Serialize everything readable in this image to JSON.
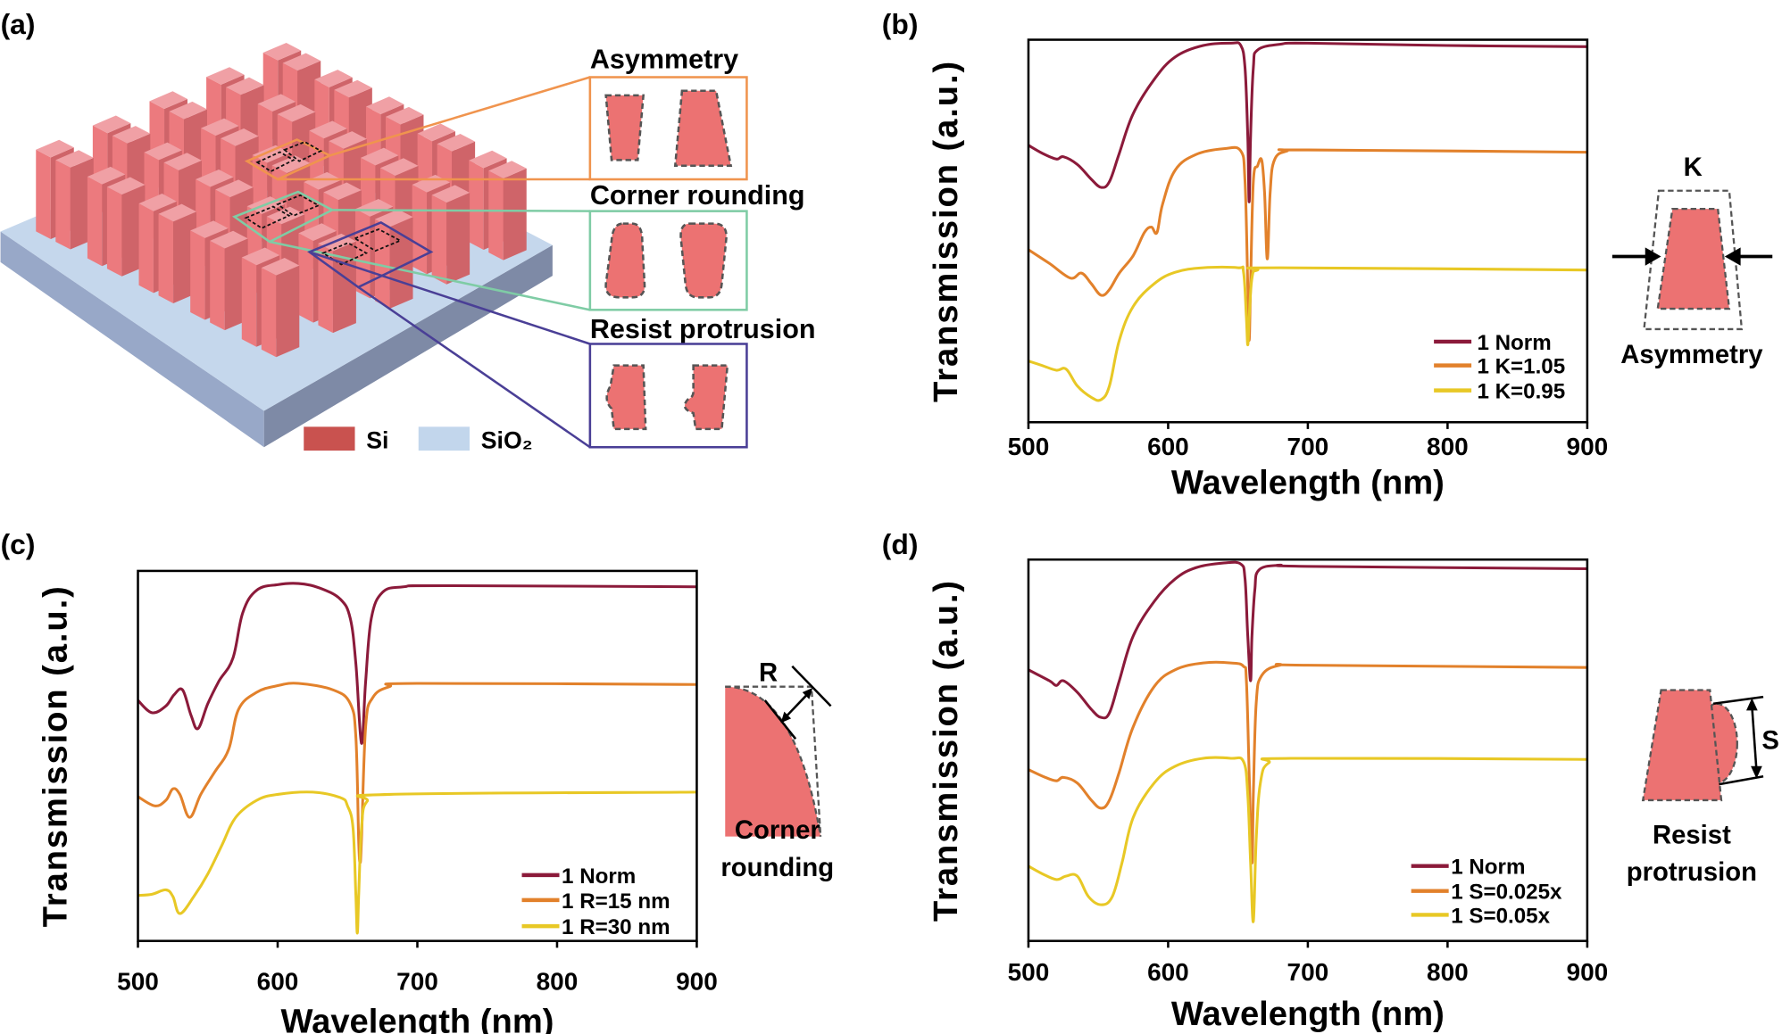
{
  "panel_labels": {
    "a": "(a)",
    "b": "(b)",
    "c": "(c)",
    "d": "(d)"
  },
  "panel_a": {
    "insets": [
      {
        "title": "Asymmetry",
        "color": "#f0944e"
      },
      {
        "title": "Corner rounding",
        "color": "#7fcca5"
      },
      {
        "title": "Resist protrusion",
        "color": "#4a3f96"
      }
    ],
    "legend": [
      {
        "label": "Si",
        "color": "#c9524f"
      },
      {
        "label": "SiO₂",
        "color": "#c2d6ec"
      }
    ]
  },
  "schematics": {
    "b": {
      "symbol": "K",
      "caption": "Asymmetry"
    },
    "c": {
      "symbol": "R",
      "caption_line1": "Corner",
      "caption_line2": "rounding"
    },
    "d": {
      "symbol": "S",
      "caption_line1": "Resist",
      "caption_line2": "protrusion"
    }
  },
  "colors": {
    "norm": "#8b1a3a",
    "orange": "#e2812b",
    "yellow": "#e8c825",
    "pillar": "#ec7272"
  },
  "chart_data": [
    {
      "id": "b",
      "type": "line",
      "title": "",
      "xlabel": "Wavelength (nm)",
      "ylabel": "Transmission (a.u.)",
      "xlim": [
        500,
        900
      ],
      "ylim": [
        0,
        1
      ],
      "xticks": [
        500,
        600,
        700,
        800,
        900
      ],
      "grid": false,
      "legend_position": "bottom-right",
      "series": [
        {
          "name": "1 Norm",
          "color": "#8b1a3a",
          "points": [
            [
              500,
              0.724
            ],
            [
              510,
              0.703
            ],
            [
              520,
              0.688
            ],
            [
              525,
              0.694
            ],
            [
              535,
              0.674
            ],
            [
              545,
              0.635
            ],
            [
              552,
              0.614
            ],
            [
              558,
              0.629
            ],
            [
              565,
              0.703
            ],
            [
              575,
              0.807
            ],
            [
              590,
              0.896
            ],
            [
              605,
              0.955
            ],
            [
              625,
              0.985
            ],
            [
              645,
              0.991
            ],
            [
              652,
              0.985
            ],
            [
              655,
              0.926
            ],
            [
              657,
              0.748
            ],
            [
              658,
              0.576
            ],
            [
              659,
              0.748
            ],
            [
              661,
              0.926
            ],
            [
              664,
              0.973
            ],
            [
              680,
              0.988
            ],
            [
              700,
              0.991
            ],
            [
              800,
              0.985
            ],
            [
              900,
              0.982
            ]
          ]
        },
        {
          "name": "1 K=1.05",
          "color": "#e2812b",
          "points": [
            [
              500,
              0.451
            ],
            [
              515,
              0.415
            ],
            [
              530,
              0.377
            ],
            [
              538,
              0.39
            ],
            [
              545,
              0.362
            ],
            [
              552,
              0.332
            ],
            [
              558,
              0.347
            ],
            [
              565,
              0.39
            ],
            [
              575,
              0.436
            ],
            [
              583,
              0.496
            ],
            [
              588,
              0.51
            ],
            [
              592,
              0.496
            ],
            [
              596,
              0.57
            ],
            [
              605,
              0.659
            ],
            [
              620,
              0.7
            ],
            [
              640,
              0.715
            ],
            [
              652,
              0.709
            ],
            [
              655,
              0.629
            ],
            [
              657,
              0.36
            ],
            [
              658,
              0.214
            ],
            [
              659,
              0.36
            ],
            [
              661,
              0.629
            ],
            [
              664,
              0.67
            ],
            [
              667,
              0.685
            ],
            [
              669,
              0.6
            ],
            [
              671,
              0.427
            ],
            [
              673,
              0.6
            ],
            [
              676,
              0.685
            ],
            [
              685,
              0.709
            ],
            [
              700,
              0.712
            ],
            [
              900,
              0.706
            ]
          ]
        },
        {
          "name": "1 K=0.95",
          "color": "#e8c825",
          "points": [
            [
              500,
              0.16
            ],
            [
              510,
              0.148
            ],
            [
              520,
              0.136
            ],
            [
              527,
              0.139
            ],
            [
              535,
              0.095
            ],
            [
              545,
              0.065
            ],
            [
              552,
              0.059
            ],
            [
              558,
              0.095
            ],
            [
              565,
              0.214
            ],
            [
              575,
              0.303
            ],
            [
              590,
              0.362
            ],
            [
              605,
              0.392
            ],
            [
              625,
              0.404
            ],
            [
              650,
              0.404
            ],
            [
              654,
              0.392
            ],
            [
              656,
              0.273
            ],
            [
              657,
              0.202
            ],
            [
              658,
              0.273
            ],
            [
              660,
              0.377
            ],
            [
              664,
              0.398
            ],
            [
              680,
              0.404
            ],
            [
              900,
              0.398
            ]
          ]
        }
      ]
    },
    {
      "id": "c",
      "type": "line",
      "title": "",
      "xlabel": "Wavelength (nm)",
      "ylabel": "Transmission (a.u.)",
      "xlim": [
        500,
        900
      ],
      "ylim": [
        0,
        1
      ],
      "xticks": [
        500,
        600,
        700,
        800,
        900
      ],
      "grid": false,
      "legend_position": "bottom-right",
      "series": [
        {
          "name": "1 Norm",
          "color": "#8b1a3a",
          "points": [
            [
              500,
              0.65
            ],
            [
              510,
              0.617
            ],
            [
              520,
              0.635
            ],
            [
              526,
              0.666
            ],
            [
              532,
              0.678
            ],
            [
              538,
              0.61
            ],
            [
              543,
              0.574
            ],
            [
              550,
              0.641
            ],
            [
              558,
              0.702
            ],
            [
              568,
              0.764
            ],
            [
              575,
              0.887
            ],
            [
              585,
              0.948
            ],
            [
              600,
              0.963
            ],
            [
              615,
              0.966
            ],
            [
              630,
              0.954
            ],
            [
              645,
              0.923
            ],
            [
              652,
              0.871
            ],
            [
              656,
              0.748
            ],
            [
              660,
              0.534
            ],
            [
              663,
              0.702
            ],
            [
              667,
              0.871
            ],
            [
              675,
              0.942
            ],
            [
              690,
              0.957
            ],
            [
              720,
              0.96
            ],
            [
              900,
              0.957
            ]
          ]
        },
        {
          "name": "1 R=15 nm",
          "color": "#e2812b",
          "points": [
            [
              500,
              0.39
            ],
            [
              512,
              0.365
            ],
            [
              520,
              0.38
            ],
            [
              525,
              0.411
            ],
            [
              530,
              0.396
            ],
            [
              537,
              0.334
            ],
            [
              545,
              0.396
            ],
            [
              555,
              0.457
            ],
            [
              565,
              0.518
            ],
            [
              572,
              0.626
            ],
            [
              585,
              0.672
            ],
            [
              600,
              0.69
            ],
            [
              615,
              0.696
            ],
            [
              640,
              0.678
            ],
            [
              652,
              0.641
            ],
            [
              656,
              0.549
            ],
            [
              658,
              0.273
            ],
            [
              659,
              0.212
            ],
            [
              660,
              0.273
            ],
            [
              663,
              0.58
            ],
            [
              668,
              0.657
            ],
            [
              680,
              0.687
            ],
            [
              700,
              0.696
            ],
            [
              900,
              0.693
            ]
          ]
        },
        {
          "name": "1 R=30 nm",
          "color": "#e8c825",
          "points": [
            [
              500,
              0.123
            ],
            [
              510,
              0.126
            ],
            [
              520,
              0.138
            ],
            [
              525,
              0.12
            ],
            [
              530,
              0.074
            ],
            [
              540,
              0.12
            ],
            [
              550,
              0.181
            ],
            [
              560,
              0.258
            ],
            [
              570,
              0.334
            ],
            [
              585,
              0.38
            ],
            [
              600,
              0.396
            ],
            [
              625,
              0.402
            ],
            [
              645,
              0.387
            ],
            [
              650,
              0.365
            ],
            [
              654,
              0.304
            ],
            [
              656,
              0.12
            ],
            [
              657,
              0.021
            ],
            [
              658,
              0.12
            ],
            [
              660,
              0.304
            ],
            [
              664,
              0.377
            ],
            [
              680,
              0.396
            ],
            [
              900,
              0.402
            ]
          ]
        }
      ]
    },
    {
      "id": "d",
      "type": "line",
      "title": "",
      "xlabel": "Wavelength (nm)",
      "ylabel": "Transmission (a.u.)",
      "xlim": [
        500,
        900
      ],
      "ylim": [
        0,
        1
      ],
      "xticks": [
        500,
        600,
        700,
        800,
        900
      ],
      "grid": false,
      "legend_position": "bottom-right",
      "series": [
        {
          "name": "1 Norm",
          "color": "#8b1a3a",
          "points": [
            [
              500,
              0.711
            ],
            [
              515,
              0.682
            ],
            [
              520,
              0.67
            ],
            [
              525,
              0.682
            ],
            [
              535,
              0.652
            ],
            [
              545,
              0.607
            ],
            [
              552,
              0.586
            ],
            [
              558,
              0.598
            ],
            [
              565,
              0.682
            ],
            [
              575,
              0.8
            ],
            [
              590,
              0.89
            ],
            [
              605,
              0.949
            ],
            [
              620,
              0.979
            ],
            [
              640,
              0.991
            ],
            [
              652,
              0.988
            ],
            [
              655,
              0.949
            ],
            [
              657,
              0.8
            ],
            [
              659,
              0.682
            ],
            [
              660,
              0.8
            ],
            [
              662,
              0.92
            ],
            [
              665,
              0.973
            ],
            [
              680,
              0.985
            ],
            [
              700,
              0.982
            ],
            [
              900,
              0.976
            ]
          ]
        },
        {
          "name": "1 S=0.025x",
          "color": "#e2812b",
          "points": [
            [
              500,
              0.449
            ],
            [
              512,
              0.429
            ],
            [
              520,
              0.42
            ],
            [
              525,
              0.429
            ],
            [
              535,
              0.414
            ],
            [
              545,
              0.369
            ],
            [
              552,
              0.348
            ],
            [
              558,
              0.369
            ],
            [
              565,
              0.443
            ],
            [
              575,
              0.562
            ],
            [
              590,
              0.667
            ],
            [
              605,
              0.711
            ],
            [
              625,
              0.729
            ],
            [
              645,
              0.729
            ],
            [
              654,
              0.72
            ],
            [
              656,
              0.682
            ],
            [
              658,
              0.443
            ],
            [
              660,
              0.205
            ],
            [
              661,
              0.384
            ],
            [
              663,
              0.622
            ],
            [
              667,
              0.696
            ],
            [
              680,
              0.723
            ],
            [
              700,
              0.723
            ],
            [
              900,
              0.717
            ]
          ]
        },
        {
          "name": "1 S=0.05x",
          "color": "#e8c825",
          "points": [
            [
              500,
              0.196
            ],
            [
              510,
              0.176
            ],
            [
              520,
              0.161
            ],
            [
              527,
              0.17
            ],
            [
              535,
              0.17
            ],
            [
              543,
              0.116
            ],
            [
              552,
              0.095
            ],
            [
              560,
              0.116
            ],
            [
              567,
              0.205
            ],
            [
              575,
              0.324
            ],
            [
              590,
              0.414
            ],
            [
              605,
              0.458
            ],
            [
              625,
              0.479
            ],
            [
              645,
              0.479
            ],
            [
              654,
              0.47
            ],
            [
              657,
              0.384
            ],
            [
              659,
              0.205
            ],
            [
              661,
              0.051
            ],
            [
              663,
              0.265
            ],
            [
              666,
              0.414
            ],
            [
              672,
              0.467
            ],
            [
              690,
              0.479
            ],
            [
              900,
              0.476
            ]
          ]
        }
      ]
    }
  ]
}
